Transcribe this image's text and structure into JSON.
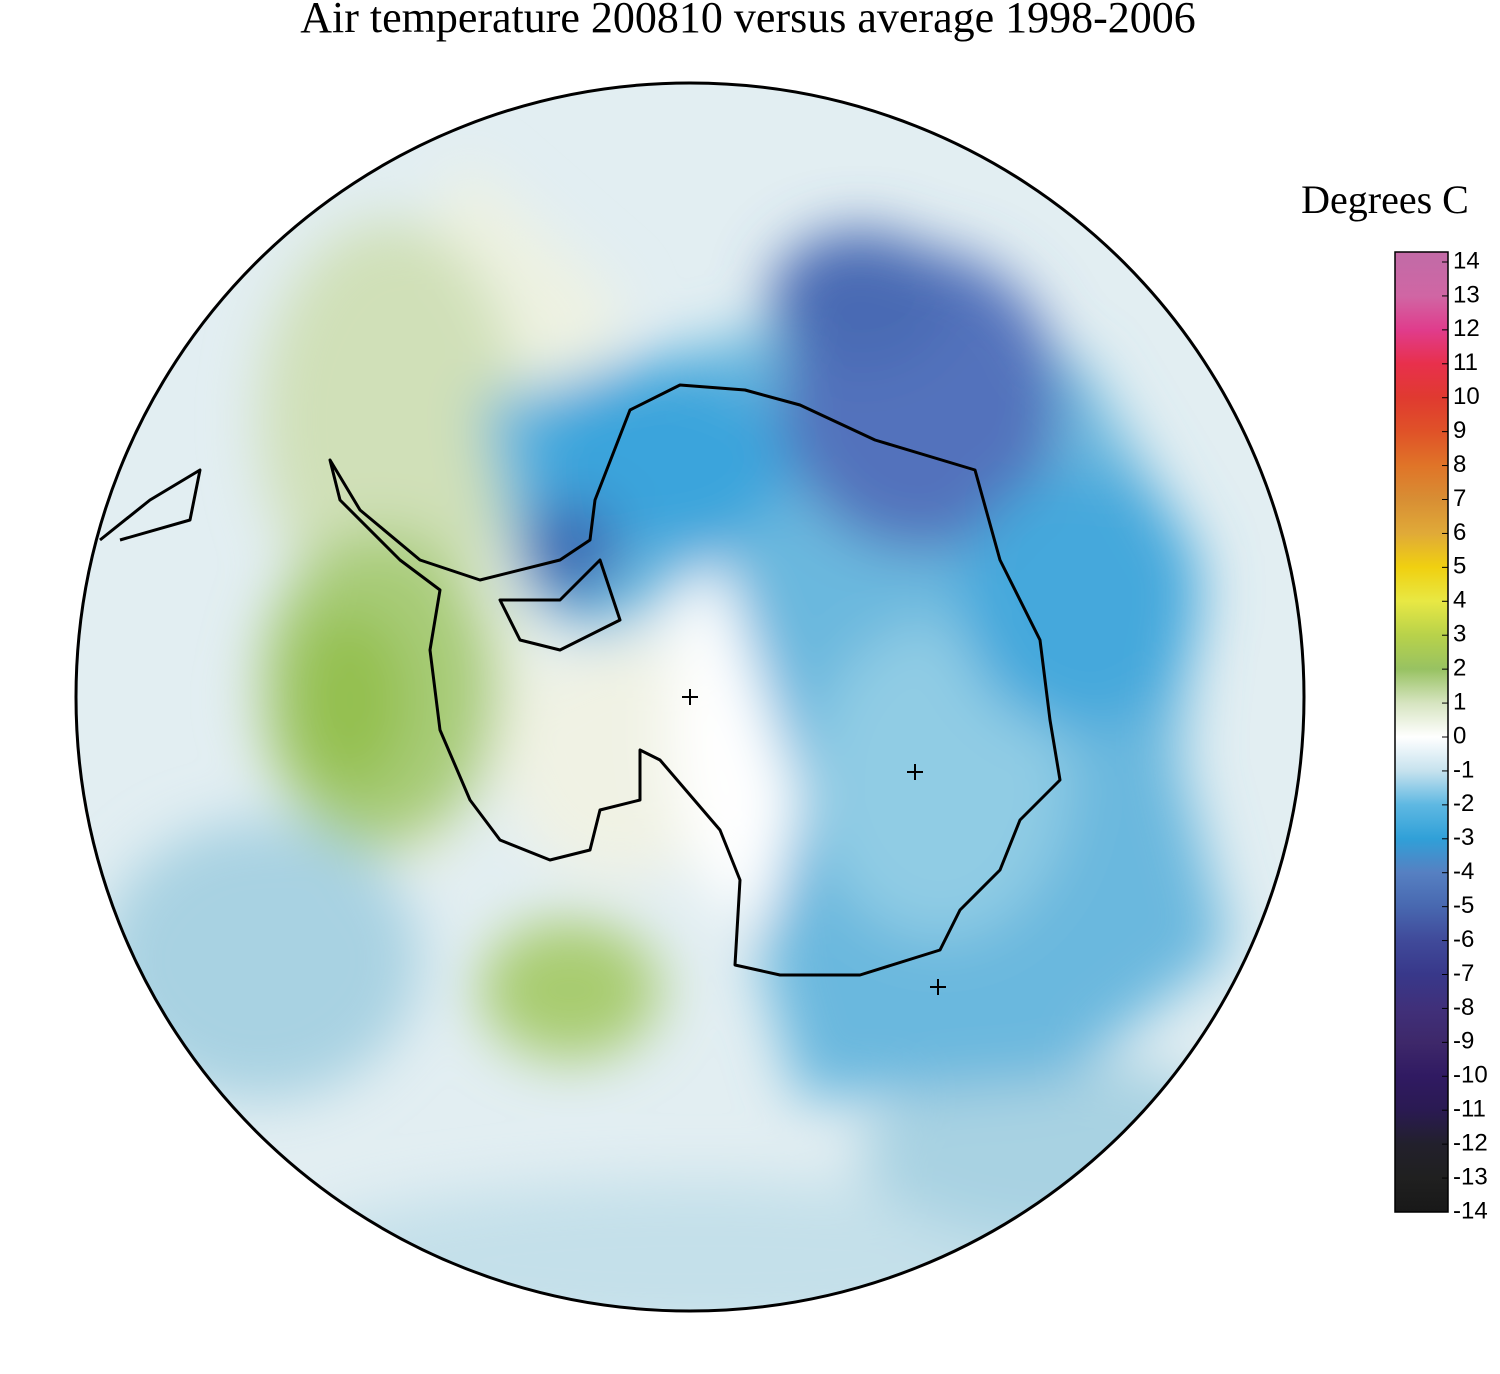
{
  "title": "Air temperature 200810 versus average 1998-2006",
  "legend": {
    "title": "Degrees C",
    "ticks": [
      14,
      13,
      12,
      11,
      10,
      9,
      8,
      7,
      6,
      5,
      4,
      3,
      2,
      1,
      0,
      -1,
      -2,
      -3,
      -4,
      -5,
      -6,
      -7,
      -8,
      -9,
      -10,
      -11,
      -12,
      -13,
      -14
    ],
    "colors": [
      "#c46aa6",
      "#d066a4",
      "#e03c8c",
      "#e8304c",
      "#e03a30",
      "#e05228",
      "#e07428",
      "#d88e34",
      "#e0aa38",
      "#f0d010",
      "#e8e844",
      "#b8d24a",
      "#98c262",
      "#d6e4c0",
      "#ffffff",
      "#c6e2ee",
      "#5eb8e2",
      "#30a0d8",
      "#5680c2",
      "#4868b0",
      "#404a9a",
      "#38388a",
      "#40307a",
      "#3e286a",
      "#301a62",
      "#2a1a52",
      "#22202c",
      "#202020",
      "#181818"
    ]
  }
}
